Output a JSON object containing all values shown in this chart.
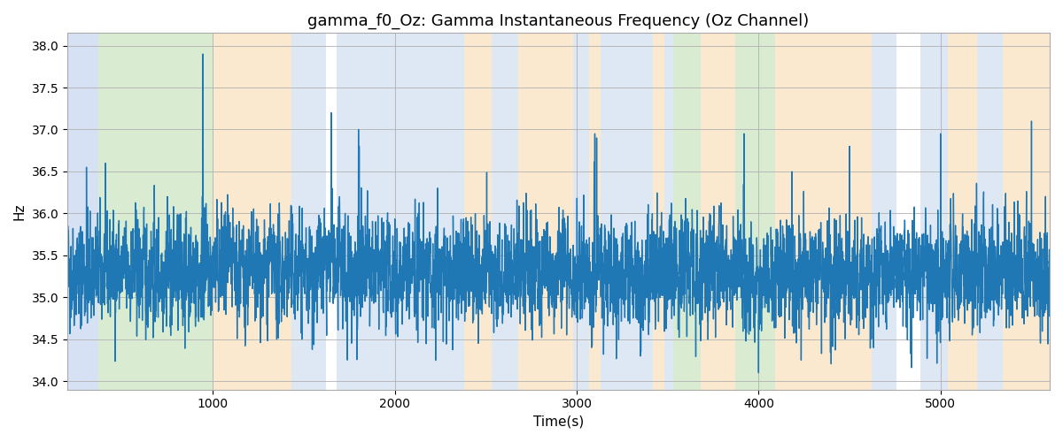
{
  "title": "gamma_f0_Oz: Gamma Instantaneous Frequency (Oz Channel)",
  "xlabel": "Time(s)",
  "ylabel": "Hz",
  "xlim": [
    200,
    5600
  ],
  "ylim": [
    33.9,
    38.15
  ],
  "yticks": [
    34.0,
    34.5,
    35.0,
    35.5,
    36.0,
    36.5,
    37.0,
    37.5,
    38.0
  ],
  "xticks": [
    1000,
    2000,
    3000,
    4000,
    5000
  ],
  "line_color": "#1f77b4",
  "line_width": 1.0,
  "background_color": "#ffffff",
  "grid_color": "#b0b0b0",
  "bands": [
    {
      "start": 200,
      "end": 370,
      "color": "#aec6e8",
      "alpha": 0.5
    },
    {
      "start": 370,
      "end": 1000,
      "color": "#b5d9a3",
      "alpha": 0.5
    },
    {
      "start": 1000,
      "end": 1430,
      "color": "#f9d4a0",
      "alpha": 0.5
    },
    {
      "start": 1430,
      "end": 1620,
      "color": "#aec6e8",
      "alpha": 0.4
    },
    {
      "start": 1620,
      "end": 1680,
      "color": "#ffffff",
      "alpha": 1.0
    },
    {
      "start": 1680,
      "end": 2380,
      "color": "#aec6e8",
      "alpha": 0.4
    },
    {
      "start": 2380,
      "end": 2530,
      "color": "#f9d4a0",
      "alpha": 0.5
    },
    {
      "start": 2530,
      "end": 2680,
      "color": "#aec6e8",
      "alpha": 0.4
    },
    {
      "start": 2680,
      "end": 2980,
      "color": "#f9d4a0",
      "alpha": 0.5
    },
    {
      "start": 2980,
      "end": 3070,
      "color": "#aec6e8",
      "alpha": 0.4
    },
    {
      "start": 3070,
      "end": 3130,
      "color": "#f9d4a0",
      "alpha": 0.5
    },
    {
      "start": 3130,
      "end": 3420,
      "color": "#aec6e8",
      "alpha": 0.4
    },
    {
      "start": 3420,
      "end": 3480,
      "color": "#f9d4a0",
      "alpha": 0.5
    },
    {
      "start": 3480,
      "end": 3530,
      "color": "#aec6e8",
      "alpha": 0.4
    },
    {
      "start": 3530,
      "end": 3680,
      "color": "#b5d9a3",
      "alpha": 0.5
    },
    {
      "start": 3680,
      "end": 3870,
      "color": "#f9d4a0",
      "alpha": 0.5
    },
    {
      "start": 3870,
      "end": 4090,
      "color": "#b5d9a3",
      "alpha": 0.5
    },
    {
      "start": 4090,
      "end": 4620,
      "color": "#f9d4a0",
      "alpha": 0.5
    },
    {
      "start": 4620,
      "end": 4760,
      "color": "#aec6e8",
      "alpha": 0.4
    },
    {
      "start": 4760,
      "end": 4890,
      "color": "#ffffff",
      "alpha": 1.0
    },
    {
      "start": 4890,
      "end": 5040,
      "color": "#aec6e8",
      "alpha": 0.4
    },
    {
      "start": 5040,
      "end": 5200,
      "color": "#f9d4a0",
      "alpha": 0.5
    },
    {
      "start": 5200,
      "end": 5340,
      "color": "#aec6e8",
      "alpha": 0.4
    },
    {
      "start": 5340,
      "end": 5600,
      "color": "#f9d4a0",
      "alpha": 0.5
    }
  ],
  "seed": 42,
  "n_points": 5400,
  "base_freq": 35.3,
  "noise_std": 0.32,
  "title_fontsize": 13,
  "label_fontsize": 11,
  "tick_fontsize": 10
}
